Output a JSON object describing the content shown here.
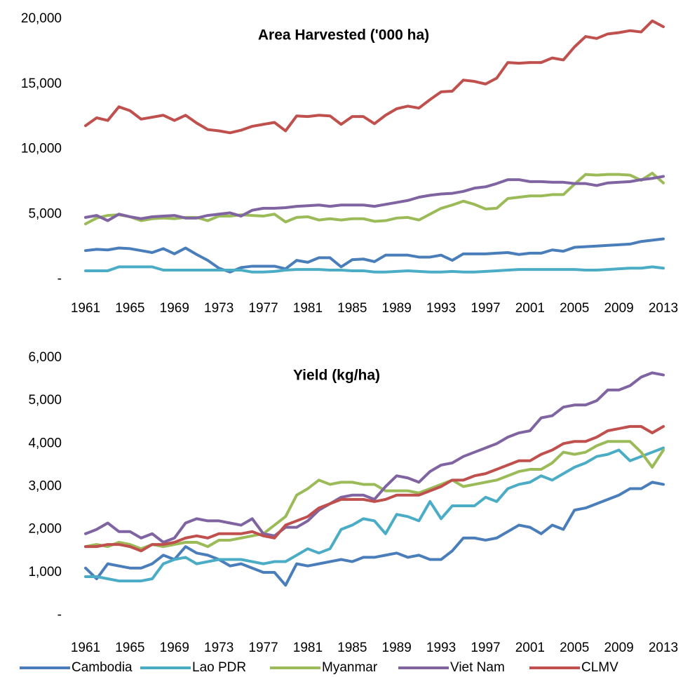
{
  "chart_data": [
    {
      "type": "line",
      "title": "Area Harvested ('000 ha)",
      "x": [
        1961,
        1962,
        1963,
        1964,
        1965,
        1966,
        1967,
        1968,
        1969,
        1970,
        1971,
        1972,
        1973,
        1974,
        1975,
        1976,
        1977,
        1978,
        1979,
        1980,
        1981,
        1982,
        1983,
        1984,
        1985,
        1986,
        1987,
        1988,
        1989,
        1990,
        1991,
        1992,
        1993,
        1994,
        1995,
        1996,
        1997,
        1998,
        1999,
        2000,
        2001,
        2002,
        2003,
        2004,
        2005,
        2006,
        2007,
        2008,
        2009,
        2010,
        2011,
        2012,
        2013
      ],
      "xlim": [
        1961,
        2013
      ],
      "xticks": [
        1961,
        1965,
        1969,
        1973,
        1977,
        1981,
        1985,
        1989,
        1993,
        1997,
        2001,
        2005,
        2009,
        2013
      ],
      "ylim": [
        0,
        20000
      ],
      "yticks": [
        {
          "value": 0,
          "label": "-"
        },
        {
          "value": 5000,
          "label": "5,000"
        },
        {
          "value": 10000,
          "label": "10,000"
        },
        {
          "value": 15000,
          "label": "15,000"
        },
        {
          "value": 20000,
          "label": "20,000"
        }
      ],
      "series": [
        {
          "color": "#4a7ebb",
          "values": [
            2200,
            2300,
            2250,
            2400,
            2350,
            2200,
            2050,
            2350,
            1950,
            2400,
            1900,
            1450,
            850,
            550,
            900,
            1000,
            1000,
            1000,
            800,
            1450,
            1300,
            1650,
            1650,
            950,
            1500,
            1550,
            1350,
            1850,
            1850,
            1850,
            1700,
            1700,
            1850,
            1450,
            1950,
            1950,
            1950,
            2000,
            2050,
            1900,
            2000,
            2000,
            2250,
            2150,
            2450,
            2500,
            2550,
            2600,
            2650,
            2700,
            2900,
            3000,
            3100
          ]
        },
        {
          "color": "#4bacc6",
          "values": [
            650,
            650,
            650,
            950,
            950,
            950,
            950,
            700,
            700,
            700,
            700,
            700,
            700,
            700,
            700,
            550,
            550,
            600,
            700,
            750,
            750,
            750,
            700,
            700,
            650,
            650,
            550,
            550,
            600,
            650,
            600,
            550,
            550,
            600,
            550,
            550,
            600,
            650,
            700,
            750,
            750,
            750,
            750,
            750,
            750,
            700,
            700,
            750,
            800,
            850,
            850,
            950,
            850
          ]
        },
        {
          "color": "#9bbb59",
          "values": [
            4250,
            4700,
            4900,
            4950,
            4800,
            4500,
            4650,
            4700,
            4650,
            4750,
            4750,
            4500,
            4850,
            4850,
            4950,
            4900,
            4850,
            5000,
            4400,
            4750,
            4800,
            4550,
            4650,
            4550,
            4650,
            4650,
            4450,
            4500,
            4700,
            4750,
            4550,
            5000,
            5450,
            5700,
            6000,
            5750,
            5400,
            5450,
            6200,
            6300,
            6400,
            6400,
            6500,
            6500,
            7300,
            8050,
            8000,
            8050,
            8050,
            8000,
            7600,
            8150,
            7400
          ]
        },
        {
          "color": "#8064a2",
          "values": [
            4750,
            4900,
            4500,
            5000,
            4800,
            4650,
            4800,
            4850,
            4900,
            4700,
            4700,
            4900,
            5000,
            5100,
            4850,
            5300,
            5450,
            5450,
            5500,
            5600,
            5650,
            5700,
            5600,
            5700,
            5700,
            5700,
            5600,
            5750,
            5900,
            6050,
            6300,
            6450,
            6550,
            6600,
            6750,
            7000,
            7100,
            7350,
            7650,
            7650,
            7500,
            7500,
            7450,
            7450,
            7350,
            7350,
            7200,
            7400,
            7450,
            7500,
            7650,
            7750,
            7900
          ]
        },
        {
          "color": "#c0504d",
          "values": [
            11800,
            12400,
            12200,
            13250,
            12950,
            12300,
            12450,
            12600,
            12200,
            12600,
            12000,
            11500,
            11400,
            11250,
            11450,
            11750,
            11900,
            12050,
            11400,
            12550,
            12500,
            12600,
            12550,
            11900,
            12500,
            12500,
            11950,
            12600,
            13100,
            13300,
            13150,
            13800,
            14400,
            14450,
            15300,
            15200,
            15000,
            15450,
            16650,
            16600,
            16650,
            16650,
            17000,
            16850,
            17850,
            18650,
            18500,
            18850,
            18950,
            19100,
            19000,
            19850,
            19400
          ]
        }
      ]
    },
    {
      "type": "line",
      "title": "Yield (kg/ha)",
      "x": [
        1961,
        1962,
        1963,
        1964,
        1965,
        1966,
        1967,
        1968,
        1969,
        1970,
        1971,
        1972,
        1973,
        1974,
        1975,
        1976,
        1977,
        1978,
        1979,
        1980,
        1981,
        1982,
        1983,
        1984,
        1985,
        1986,
        1987,
        1988,
        1989,
        1990,
        1991,
        1992,
        1993,
        1994,
        1995,
        1996,
        1997,
        1998,
        1999,
        2000,
        2001,
        2002,
        2003,
        2004,
        2005,
        2006,
        2007,
        2008,
        2009,
        2010,
        2011,
        2012,
        2013
      ],
      "xlim": [
        1961,
        2013
      ],
      "xticks": [
        1961,
        1965,
        1969,
        1973,
        1977,
        1981,
        1985,
        1989,
        1993,
        1997,
        2001,
        2005,
        2009,
        2013
      ],
      "ylim": [
        0,
        6000
      ],
      "yticks": [
        {
          "value": 0,
          "label": "-"
        },
        {
          "value": 1000,
          "label": "1,000"
        },
        {
          "value": 2000,
          "label": "2,000"
        },
        {
          "value": 3000,
          "label": "3,000"
        },
        {
          "value": 4000,
          "label": "4,000"
        },
        {
          "value": 5000,
          "label": "5,000"
        },
        {
          "value": 6000,
          "label": "6,000"
        }
      ],
      "series": [
        {
          "name": "Cambodia",
          "color": "#4a7ebb",
          "values": [
            1100,
            850,
            1200,
            1150,
            1100,
            1100,
            1200,
            1400,
            1300,
            1600,
            1450,
            1400,
            1300,
            1150,
            1200,
            1100,
            1000,
            1000,
            700,
            1200,
            1150,
            1200,
            1250,
            1300,
            1250,
            1350,
            1350,
            1400,
            1450,
            1350,
            1400,
            1300,
            1300,
            1500,
            1800,
            1800,
            1750,
            1800,
            1950,
            2100,
            2050,
            1900,
            2100,
            2000,
            2450,
            2500,
            2600,
            2700,
            2800,
            2950,
            2950,
            3100,
            3050
          ]
        },
        {
          "name": "Lao PDR",
          "color": "#4bacc6",
          "values": [
            900,
            900,
            850,
            800,
            800,
            800,
            850,
            1200,
            1300,
            1350,
            1200,
            1250,
            1300,
            1300,
            1300,
            1250,
            1200,
            1250,
            1250,
            1400,
            1550,
            1450,
            1550,
            2000,
            2100,
            2250,
            2200,
            1900,
            2350,
            2300,
            2200,
            2650,
            2250,
            2550,
            2550,
            2550,
            2750,
            2650,
            2950,
            3050,
            3100,
            3250,
            3150,
            3300,
            3450,
            3550,
            3700,
            3750,
            3850,
            3600,
            3700,
            3800,
            3900
          ]
        },
        {
          "name": "Myanmar",
          "color": "#9bbb59",
          "values": [
            1600,
            1650,
            1600,
            1700,
            1650,
            1550,
            1650,
            1600,
            1650,
            1700,
            1700,
            1600,
            1750,
            1750,
            1800,
            1850,
            1900,
            2100,
            2300,
            2800,
            2950,
            3150,
            3050,
            3100,
            3100,
            3050,
            3050,
            2900,
            2900,
            2900,
            2850,
            2950,
            3050,
            3150,
            3000,
            3050,
            3100,
            3150,
            3250,
            3350,
            3400,
            3400,
            3550,
            3800,
            3750,
            3800,
            3950,
            4050,
            4050,
            4050,
            3800,
            3450,
            3850
          ]
        },
        {
          "name": "Viet Nam",
          "color": "#8064a2",
          "values": [
            1900,
            2000,
            2150,
            1950,
            1950,
            1800,
            1900,
            1700,
            1800,
            2150,
            2250,
            2200,
            2200,
            2150,
            2100,
            2250,
            1900,
            1850,
            2050,
            2050,
            2200,
            2450,
            2600,
            2750,
            2800,
            2800,
            2700,
            3000,
            3250,
            3200,
            3100,
            3350,
            3500,
            3550,
            3700,
            3800,
            3900,
            4000,
            4150,
            4250,
            4300,
            4600,
            4650,
            4850,
            4900,
            4900,
            5000,
            5250,
            5250,
            5350,
            5550,
            5650,
            5600
          ]
        },
        {
          "name": "CLMV",
          "color": "#c0504d",
          "values": [
            1600,
            1600,
            1650,
            1650,
            1600,
            1500,
            1650,
            1650,
            1700,
            1800,
            1850,
            1800,
            1900,
            1900,
            1900,
            1950,
            1850,
            1800,
            2100,
            2200,
            2300,
            2500,
            2600,
            2700,
            2700,
            2700,
            2650,
            2700,
            2800,
            2800,
            2800,
            2900,
            3000,
            3150,
            3150,
            3250,
            3300,
            3400,
            3500,
            3600,
            3600,
            3750,
            3850,
            4000,
            4050,
            4050,
            4150,
            4300,
            4350,
            4400,
            4400,
            4250,
            4400
          ]
        }
      ]
    }
  ]
}
